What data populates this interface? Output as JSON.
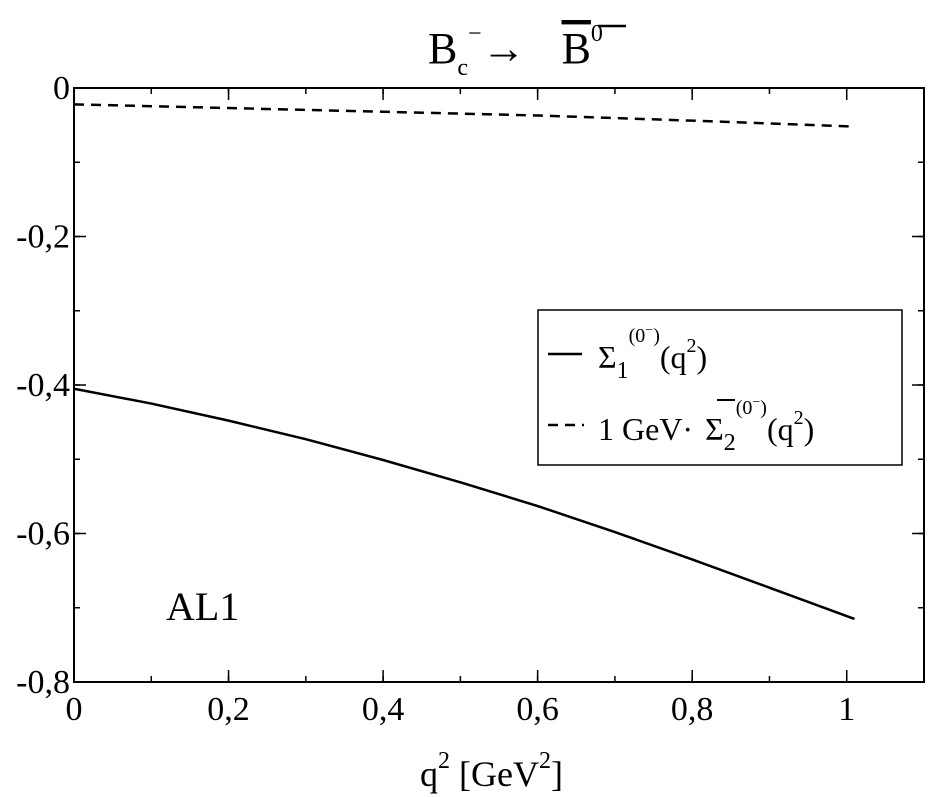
{
  "chart_data": {
    "type": "line",
    "title": {
      "particle_from": "B",
      "from_sub": "c",
      "from_sup": "−",
      "arrow": "→",
      "particle_to": "B",
      "to_sup": "0"
    },
    "xlabel": {
      "main": "q",
      "sup": "2",
      "unit_open": " [GeV",
      "unit_sup": "2",
      "unit_close": "]"
    },
    "xlim": [
      0,
      1.1
    ],
    "ylim": [
      -0.8,
      0
    ],
    "x_ticks": [
      {
        "value": 0,
        "label": "0"
      },
      {
        "value": 0.2,
        "label": "0,2"
      },
      {
        "value": 0.4,
        "label": "0,4"
      },
      {
        "value": 0.6,
        "label": "0,6"
      },
      {
        "value": 0.8,
        "label": "0,8"
      },
      {
        "value": 1.0,
        "label": "1"
      }
    ],
    "y_ticks": [
      {
        "value": 0,
        "label": "0"
      },
      {
        "value": -0.2,
        "label": "-0,2"
      },
      {
        "value": -0.4,
        "label": "-0,4"
      },
      {
        "value": -0.6,
        "label": "-0,6"
      },
      {
        "value": -0.8,
        "label": "-0,8"
      }
    ],
    "x_minor_step": 0.1,
    "y_minor_step": 0.1,
    "grid": false,
    "legend_position": "right",
    "annotation": "AL1",
    "series": [
      {
        "style": "solid",
        "legend": {
          "prefix": "",
          "symbol": "Σ",
          "sub": "1",
          "sup": "(0",
          "sup_minus": "−",
          "sup_close": ")",
          "arg_open": "(q",
          "arg_sup": "2",
          "arg_close": ")"
        },
        "x": [
          0,
          0.1,
          0.2,
          0.3,
          0.4,
          0.5,
          0.6,
          0.7,
          0.8,
          0.9,
          1.01
        ],
        "y": [
          -0.405,
          -0.425,
          -0.448,
          -0.473,
          -0.501,
          -0.531,
          -0.563,
          -0.598,
          -0.635,
          -0.673,
          -0.715
        ]
      },
      {
        "style": "dashed",
        "legend": {
          "prefix": "1 GeV·",
          "symbol": "Σ",
          "sub": "2",
          "sup": "(0",
          "sup_minus": "−",
          "sup_close": ")",
          "arg_open": "(q",
          "arg_sup": "2",
          "arg_close": ")"
        },
        "x": [
          0,
          0.2,
          0.4,
          0.6,
          0.8,
          1.01
        ],
        "y": [
          -0.022,
          -0.027,
          -0.032,
          -0.037,
          -0.044,
          -0.052
        ]
      }
    ]
  }
}
